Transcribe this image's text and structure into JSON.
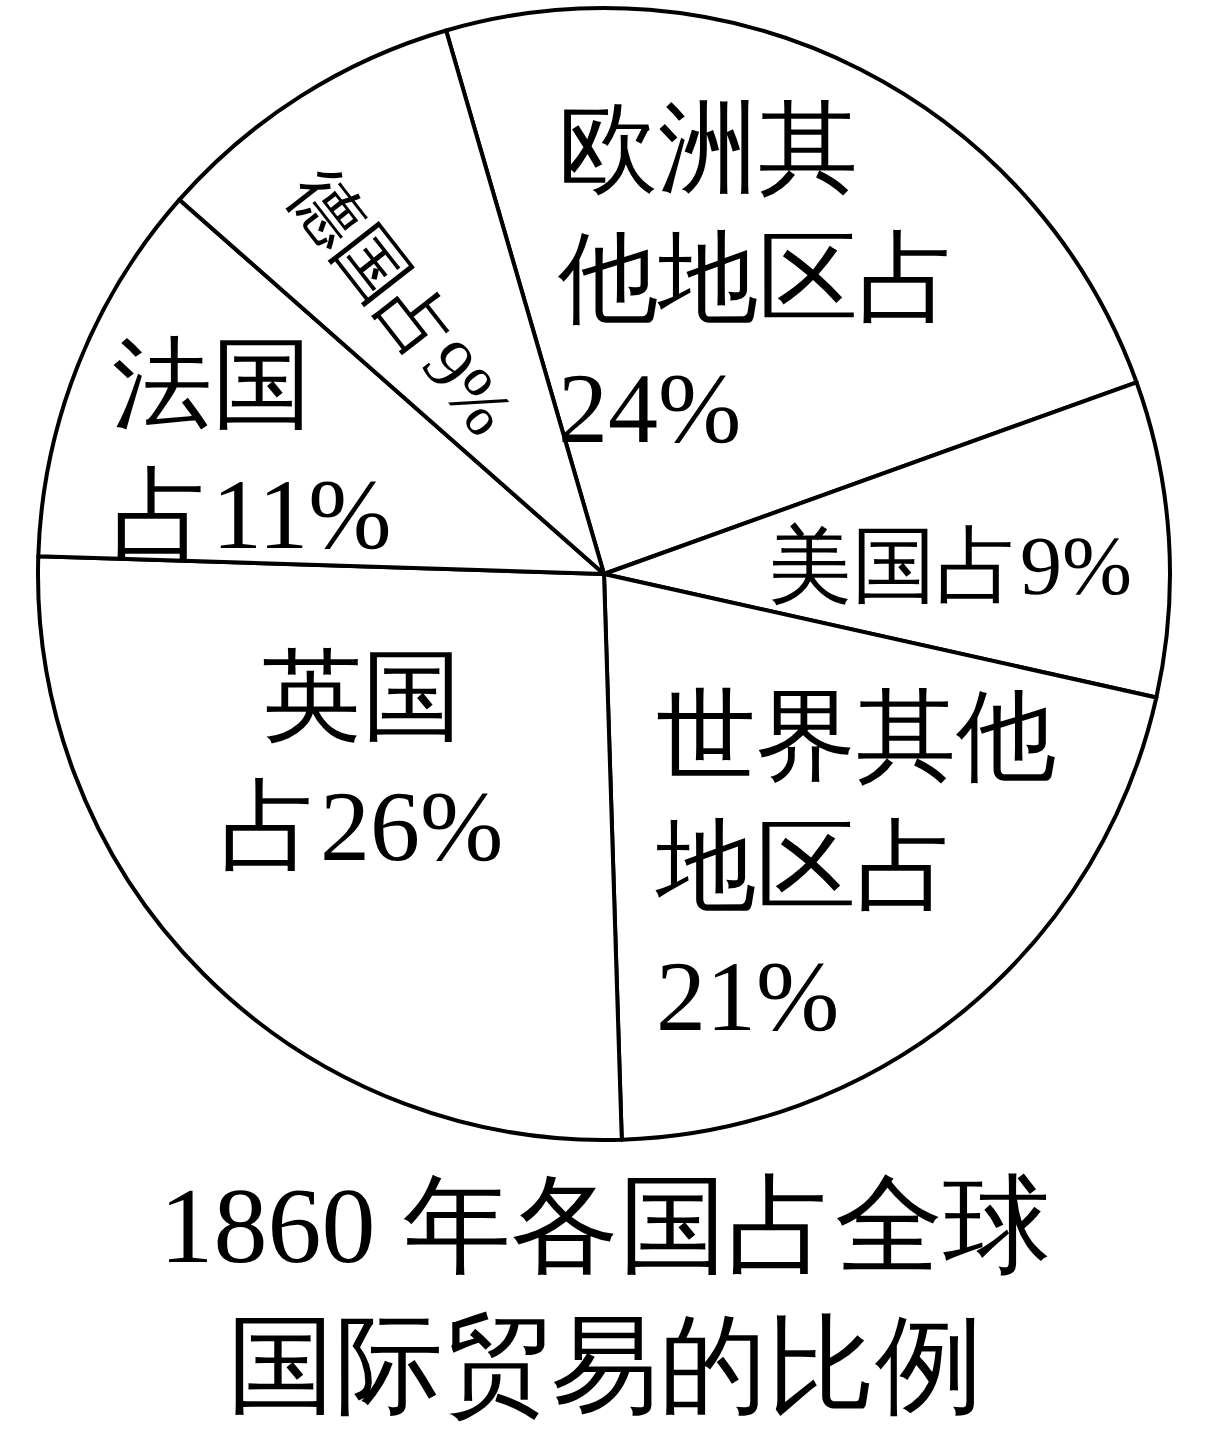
{
  "chart_data": {
    "type": "pie",
    "title": "1860 年各国占全球国际贸易的比例",
    "categories": [
      "欧洲其他地区占",
      "美国占",
      "世界其他地区占",
      "英国占",
      "法国占",
      "德国占"
    ],
    "values": [
      24,
      9,
      21,
      26,
      11,
      9
    ],
    "value_labels": [
      "24%",
      "9%",
      "21%",
      "26%",
      "11%",
      "9%"
    ],
    "colors": [
      "#ffffff",
      "#ffffff",
      "#ffffff",
      "#ffffff",
      "#ffffff",
      "#ffffff"
    ]
  }
}
